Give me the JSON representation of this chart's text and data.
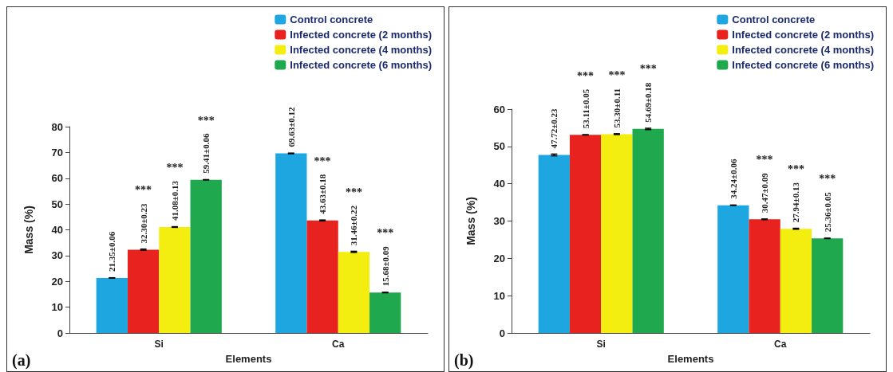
{
  "chart_data": [
    {
      "type": "bar",
      "xlabel": "Elements",
      "ylabel": "Mass (%)",
      "categories": [
        "Si",
        "Ca"
      ],
      "ylim": [
        0,
        80
      ],
      "yticks": [
        0,
        10,
        20,
        30,
        40,
        50,
        60,
        70,
        80
      ],
      "legend": "top right",
      "series": [
        {
          "name": "Control concrete",
          "color": "#1ea6e0",
          "values": [
            21.35,
            69.63
          ],
          "errors": [
            0.06,
            0.12
          ],
          "value_labels": [
            "21.35±0.06",
            "69.63±0.12"
          ]
        },
        {
          "name": "Infected concrete (2 months)",
          "color": "#e8221e",
          "values": [
            32.3,
            43.63
          ],
          "errors": [
            0.23,
            0.18
          ],
          "value_labels": [
            "32.30±0.23",
            "43.63±0.18"
          ]
        },
        {
          "name": "Infected concrete (4 months)",
          "color": "#f4ee10",
          "values": [
            41.08,
            31.46
          ],
          "errors": [
            0.13,
            0.22
          ],
          "value_labels": [
            "41.08±0.13",
            "31.46±0.22"
          ]
        },
        {
          "name": "Infected concrete (6 months)",
          "color": "#1fa84e",
          "values": [
            59.41,
            15.68
          ],
          "errors": [
            0.06,
            0.09
          ],
          "value_labels": [
            "59.41±0.06",
            "15.68±0.09"
          ]
        }
      ],
      "annotations": [
        "(a)",
        "***",
        "***",
        "***",
        "***",
        "***",
        "***"
      ]
    },
    {
      "type": "bar",
      "xlabel": "Elements",
      "ylabel": "Mass (%)",
      "categories": [
        "Si",
        "Ca"
      ],
      "ylim": [
        0,
        60
      ],
      "yticks": [
        0,
        10,
        20,
        30,
        40,
        50,
        60
      ],
      "legend": "top right",
      "series": [
        {
          "name": "Control concrete",
          "color": "#1ea6e0",
          "values": [
            47.72,
            34.24
          ],
          "errors": [
            0.23,
            0.06
          ],
          "value_labels": [
            "47.72±0.23",
            "34.24±0.06"
          ]
        },
        {
          "name": "Infected concrete (2 months)",
          "color": "#e8221e",
          "values": [
            53.11,
            30.47
          ],
          "errors": [
            0.05,
            0.09
          ],
          "value_labels": [
            "53.11±0.05",
            "30.47±0.09"
          ]
        },
        {
          "name": "Infected concrete (4 months)",
          "color": "#f4ee10",
          "values": [
            53.3,
            27.94
          ],
          "errors": [
            0.11,
            0.13
          ],
          "value_labels": [
            "53.30±0.11",
            "27.94±0.13"
          ]
        },
        {
          "name": "Infected concrete (6 months)",
          "color": "#1fa84e",
          "values": [
            54.69,
            25.36
          ],
          "errors": [
            0.18,
            0.05
          ],
          "value_labels": [
            "54.69±0.18",
            "25.36±0.05"
          ]
        }
      ],
      "annotations": [
        "(b)",
        "***",
        "***",
        "***",
        "***",
        "***",
        "***"
      ]
    }
  ]
}
